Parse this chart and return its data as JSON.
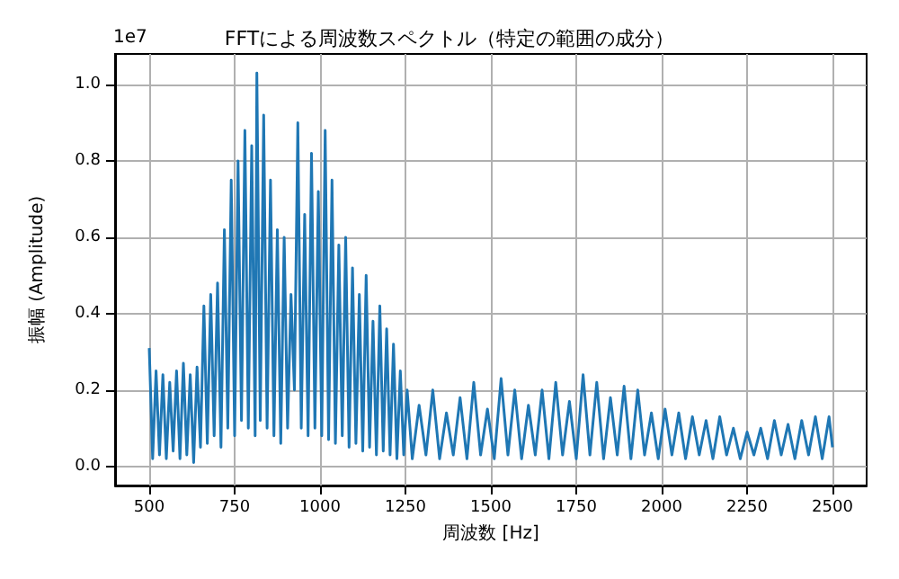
{
  "chart_data": {
    "type": "line",
    "title": "FFTによる周波数スペクトル（特定の範囲の成分）",
    "xlabel": "周波数 [Hz]",
    "ylabel": "振幅 (Amplitude)",
    "annotations": [
      "1e7"
    ],
    "xlim": [
      400,
      2600
    ],
    "ylim": [
      -0.05,
      1.08
    ],
    "xticks": [
      500,
      750,
      1000,
      1250,
      1500,
      1750,
      2000,
      2250,
      2500
    ],
    "yticks": [
      {
        "value": 0,
        "label": "0.0"
      },
      0.2,
      0.4,
      0.6,
      0.8,
      {
        "value": 1,
        "label": "1.0"
      }
    ],
    "grid": true,
    "line_style": "solid",
    "series": [
      {
        "color": "#1f77b4",
        "x": [
          500,
          510,
          520,
          530,
          540,
          550,
          560,
          570,
          580,
          590,
          600,
          610,
          620,
          630,
          640,
          650,
          660,
          670,
          680,
          690,
          700,
          710,
          720,
          730,
          740,
          750,
          760,
          770,
          780,
          790,
          800,
          810,
          815,
          825,
          835,
          845,
          855,
          865,
          875,
          885,
          895,
          905,
          915,
          925,
          935,
          945,
          955,
          965,
          975,
          985,
          995,
          1005,
          1015,
          1025,
          1035,
          1045,
          1055,
          1065,
          1075,
          1085,
          1095,
          1105,
          1115,
          1125,
          1135,
          1145,
          1155,
          1165,
          1175,
          1185,
          1195,
          1205,
          1215,
          1225,
          1235,
          1245,
          1255,
          1270,
          1290,
          1310,
          1330,
          1350,
          1370,
          1390,
          1410,
          1430,
          1450,
          1470,
          1490,
          1510,
          1530,
          1550,
          1570,
          1590,
          1610,
          1630,
          1650,
          1670,
          1690,
          1710,
          1730,
          1750,
          1770,
          1790,
          1810,
          1830,
          1850,
          1870,
          1890,
          1910,
          1930,
          1950,
          1970,
          1990,
          2010,
          2030,
          2050,
          2070,
          2090,
          2110,
          2130,
          2150,
          2170,
          2190,
          2210,
          2230,
          2250,
          2270,
          2290,
          2310,
          2330,
          2350,
          2370,
          2390,
          2410,
          2430,
          2450,
          2470,
          2490,
          2500
        ],
        "values": [
          0.31,
          0.02,
          0.25,
          0.03,
          0.24,
          0.02,
          0.22,
          0.04,
          0.25,
          0.02,
          0.27,
          0.03,
          0.24,
          0.01,
          0.26,
          0.05,
          0.42,
          0.06,
          0.45,
          0.08,
          0.48,
          0.05,
          0.62,
          0.1,
          0.75,
          0.08,
          0.8,
          0.12,
          0.88,
          0.1,
          0.84,
          0.08,
          1.03,
          0.12,
          0.92,
          0.1,
          0.75,
          0.08,
          0.62,
          0.06,
          0.6,
          0.1,
          0.45,
          0.2,
          0.9,
          0.1,
          0.66,
          0.08,
          0.82,
          0.1,
          0.72,
          0.08,
          0.88,
          0.07,
          0.75,
          0.06,
          0.58,
          0.08,
          0.6,
          0.05,
          0.52,
          0.06,
          0.45,
          0.04,
          0.5,
          0.05,
          0.38,
          0.03,
          0.42,
          0.04,
          0.36,
          0.03,
          0.32,
          0.02,
          0.25,
          0.03,
          0.2,
          0.02,
          0.16,
          0.03,
          0.2,
          0.02,
          0.14,
          0.03,
          0.18,
          0.02,
          0.22,
          0.03,
          0.15,
          0.02,
          0.23,
          0.03,
          0.2,
          0.02,
          0.16,
          0.03,
          0.2,
          0.02,
          0.22,
          0.03,
          0.17,
          0.02,
          0.24,
          0.03,
          0.22,
          0.02,
          0.18,
          0.03,
          0.21,
          0.02,
          0.2,
          0.03,
          0.14,
          0.02,
          0.15,
          0.03,
          0.14,
          0.02,
          0.13,
          0.03,
          0.12,
          0.02,
          0.13,
          0.03,
          0.1,
          0.02,
          0.09,
          0.03,
          0.1,
          0.02,
          0.12,
          0.03,
          0.11,
          0.02,
          0.12,
          0.03,
          0.13,
          0.02,
          0.13,
          0.05
        ]
      }
    ]
  }
}
